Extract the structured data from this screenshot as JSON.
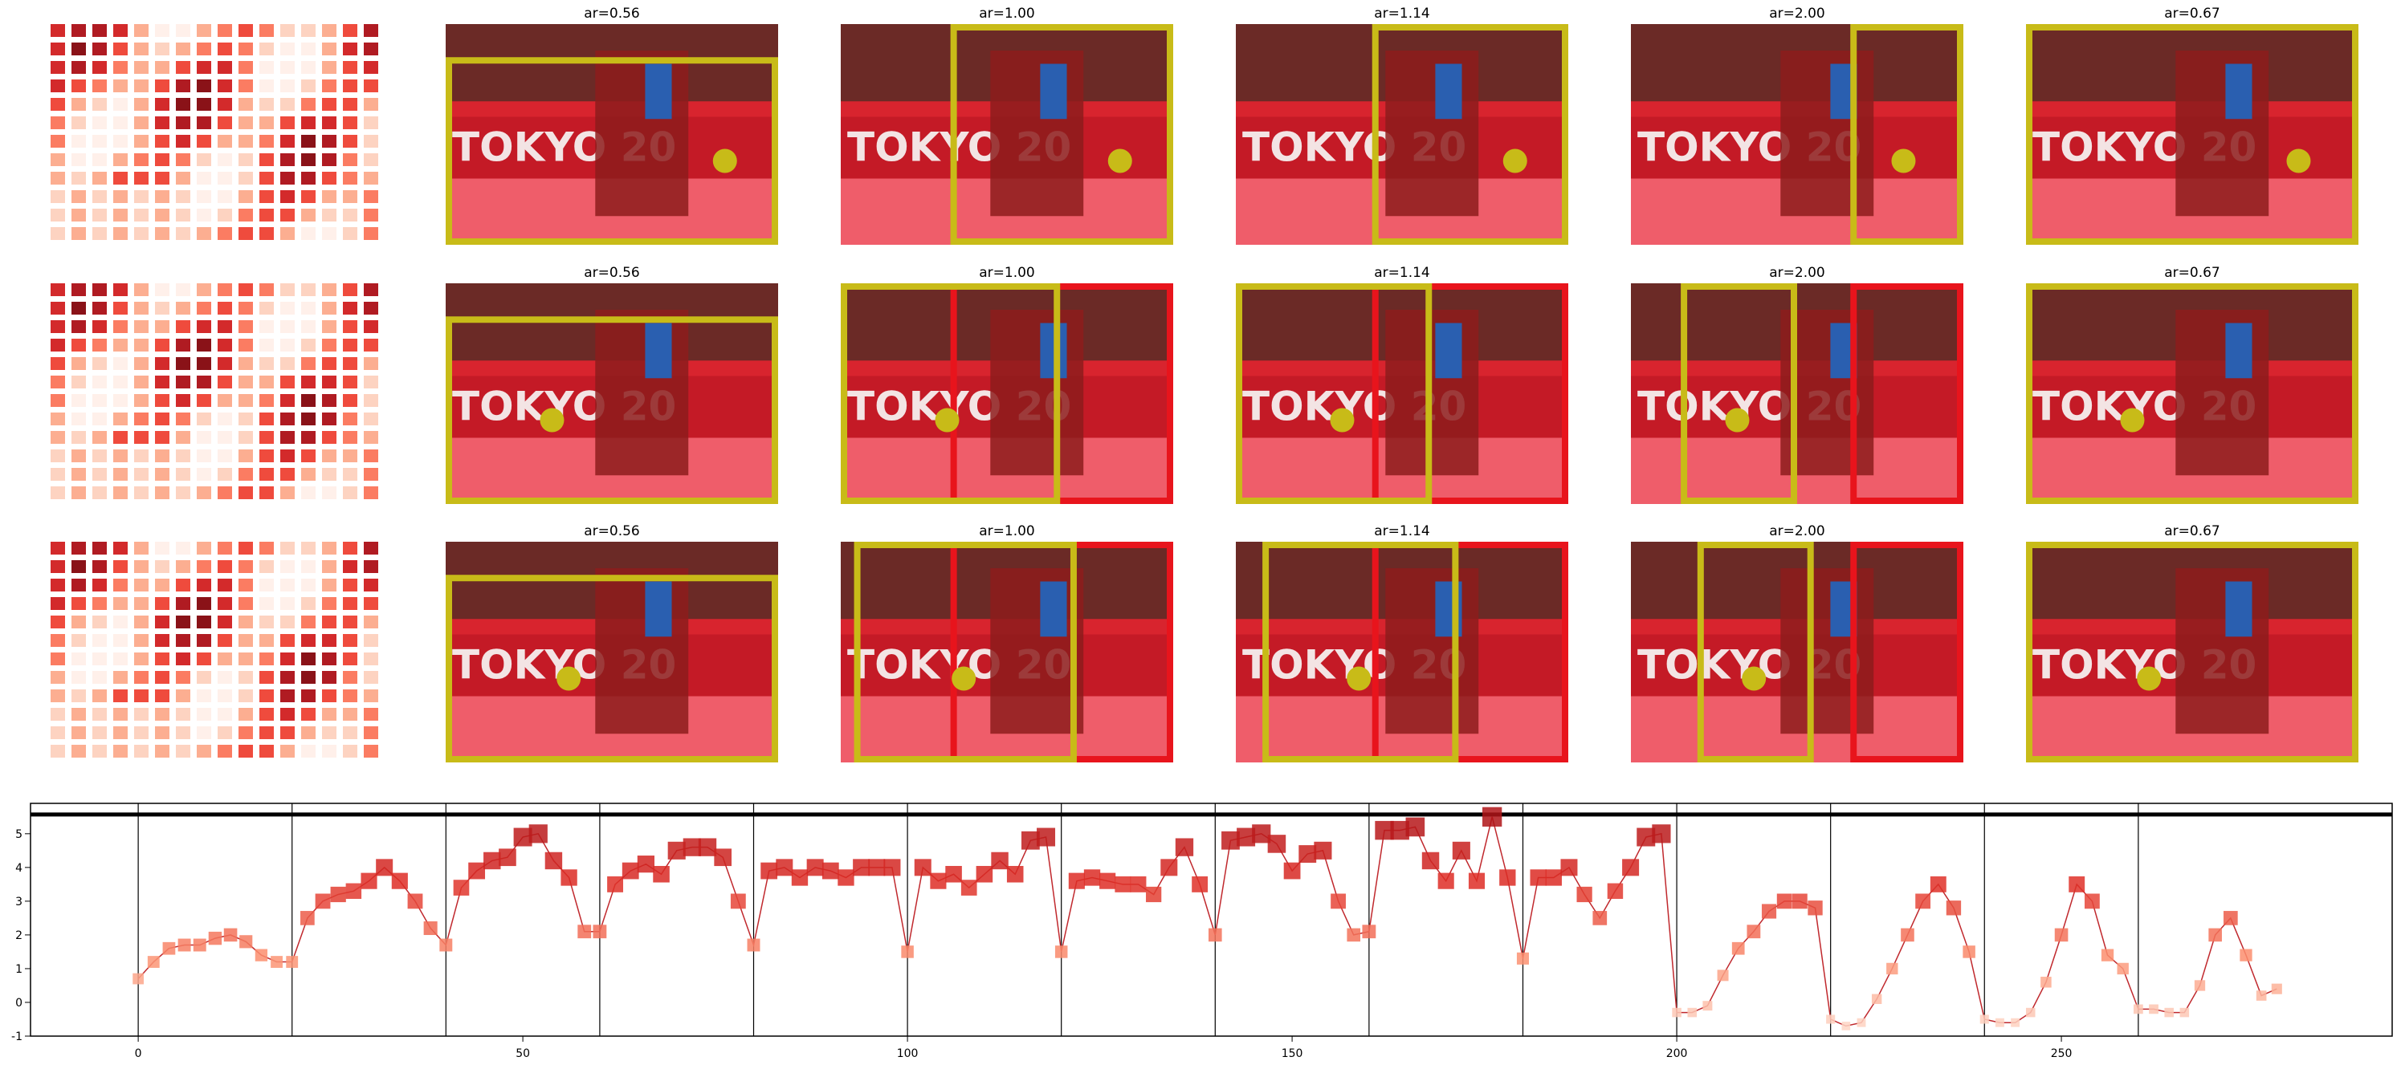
{
  "panel_titles": [
    [
      "ar=0.56",
      "ar=1.00",
      "ar=1.14",
      "ar=2.00",
      "ar=0.67"
    ],
    [
      "ar=0.56",
      "ar=1.00",
      "ar=1.14",
      "ar=2.00",
      "ar=0.67"
    ],
    [
      "ar=0.56",
      "ar=1.00",
      "ar=1.14",
      "ar=2.00",
      "ar=0.67"
    ]
  ],
  "photo_text": "TOKYO 20",
  "chart_data": {
    "type": "line",
    "x": [
      0,
      2,
      4,
      6,
      8,
      10,
      12,
      14,
      16,
      18,
      20,
      22,
      24,
      26,
      28,
      30,
      32,
      34,
      36,
      38,
      40,
      42,
      44,
      46,
      48,
      50,
      52,
      54,
      56,
      58,
      60,
      62,
      64,
      66,
      68,
      70,
      72,
      74,
      76,
      78,
      80,
      82,
      84,
      86,
      88,
      90,
      92,
      94,
      96,
      98,
      100,
      102,
      104,
      106,
      108,
      110,
      112,
      114,
      116,
      118,
      120,
      122,
      124,
      126,
      128,
      130,
      132,
      134,
      136,
      138,
      140,
      142,
      144,
      146,
      148,
      150,
      152,
      154,
      156,
      158,
      160,
      162,
      164,
      166,
      168,
      170,
      172,
      174,
      176,
      178,
      180,
      182,
      184,
      186,
      188,
      190,
      192,
      194,
      196,
      198,
      200,
      202,
      204,
      206,
      208,
      210,
      212,
      214,
      216,
      218,
      220,
      222,
      224,
      226,
      228,
      230,
      232,
      234,
      236,
      238,
      240,
      242,
      244,
      246,
      248,
      250,
      252,
      254,
      256,
      258,
      260,
      262,
      264,
      266,
      268,
      270,
      272,
      274,
      276,
      278
    ],
    "values": [
      0.7,
      1.2,
      1.6,
      1.7,
      1.7,
      1.9,
      2.0,
      1.8,
      1.4,
      1.2,
      1.2,
      2.5,
      3.0,
      3.2,
      3.3,
      3.6,
      4.0,
      3.6,
      3.0,
      2.2,
      1.7,
      3.4,
      3.9,
      4.2,
      4.3,
      4.9,
      5.0,
      4.2,
      3.7,
      2.1,
      2.1,
      3.5,
      3.9,
      4.1,
      3.8,
      4.5,
      4.6,
      4.6,
      4.3,
      3.0,
      1.7,
      3.9,
      4.0,
      3.7,
      4.0,
      3.9,
      3.7,
      4.0,
      4.0,
      4.0,
      1.5,
      4.0,
      3.6,
      3.8,
      3.4,
      3.8,
      4.2,
      3.8,
      4.8,
      4.9,
      1.5,
      3.6,
      3.7,
      3.6,
      3.5,
      3.5,
      3.2,
      4.0,
      4.6,
      3.5,
      2.0,
      4.8,
      4.9,
      5.0,
      4.7,
      3.9,
      4.4,
      4.5,
      3.0,
      2.0,
      2.1,
      5.1,
      5.1,
      5.2,
      4.2,
      3.6,
      4.5,
      3.6,
      5.5,
      3.7,
      1.3,
      3.7,
      3.7,
      4.0,
      3.2,
      2.5,
      3.3,
      4.0,
      4.9,
      5.0,
      -0.3,
      -0.3,
      -0.1,
      0.8,
      1.6,
      2.1,
      2.7,
      3.0,
      3.0,
      2.8,
      -0.5,
      -0.7,
      -0.6,
      0.1,
      1.0,
      2.0,
      3.0,
      3.5,
      2.8,
      1.5,
      -0.5,
      -0.6,
      -0.6,
      -0.3,
      0.6,
      2.0,
      3.5,
      3.0,
      1.4,
      1.0,
      -0.2,
      -0.2,
      -0.3,
      -0.3,
      0.5,
      2.0,
      2.5,
      1.4,
      0.2,
      0.4
    ],
    "line_color": "#c0282d",
    "marker_colors": [
      "#fee0d2",
      "#fc9272",
      "#de2d26",
      "#a50f15"
    ],
    "vlines": [
      0,
      20,
      40,
      60,
      80,
      100,
      120,
      140,
      160,
      180,
      200,
      220,
      240,
      260
    ],
    "hline": 5.57,
    "xlim": [
      -14,
      293
    ],
    "ylim": [
      -1,
      5.9
    ],
    "xticks": [
      0,
      50,
      100,
      150,
      200,
      250
    ],
    "yticks": [
      -1,
      0,
      1,
      2,
      3,
      4,
      5
    ]
  }
}
